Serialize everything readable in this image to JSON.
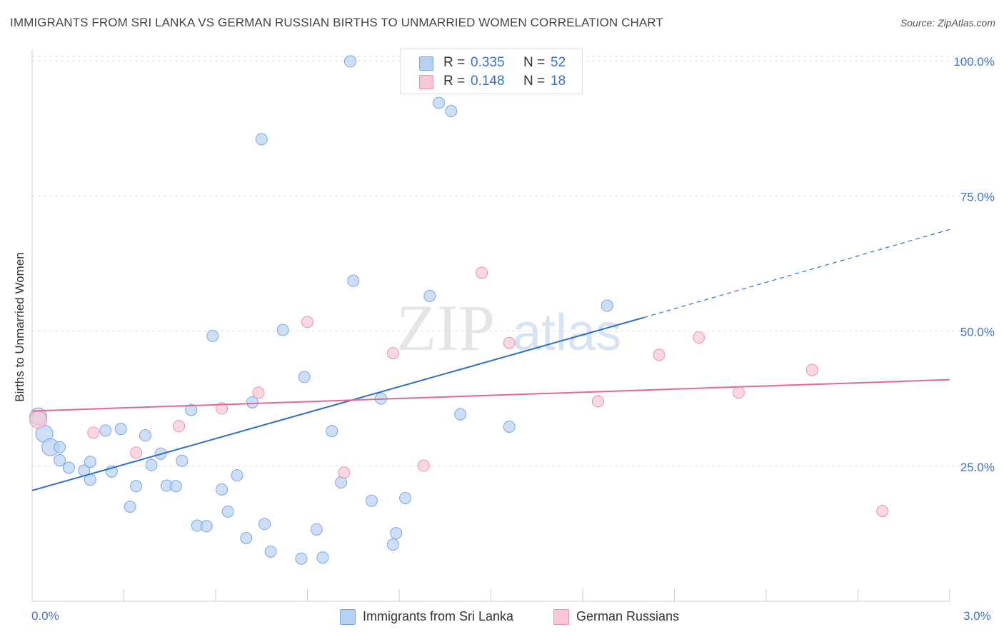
{
  "title": "IMMIGRANTS FROM SRI LANKA VS GERMAN RUSSIAN BIRTHS TO UNMARRIED WOMEN CORRELATION CHART",
  "source": "Source: ZipAtlas.com",
  "watermark": {
    "zip": "ZIP",
    "atlas": "atlas"
  },
  "legend": {
    "r_label": "R =",
    "n_label": "N =",
    "series": [
      {
        "r": "0.335",
        "n": "52"
      },
      {
        "r": "0.148",
        "n": "18"
      }
    ]
  },
  "colors": {
    "blue_fill": "#b7d1f3",
    "blue_stroke": "#7aa6e0",
    "blue_line": "#2c6fcb",
    "pink_fill": "#f8c6d4",
    "pink_stroke": "#e893ad",
    "pink_line": "#e06a95",
    "axis_text": "#3b73c8",
    "grid": "#dddddd"
  },
  "chart_data": {
    "type": "scatter",
    "title": "IMMIGRANTS FROM SRI LANKA VS GERMAN RUSSIAN BIRTHS TO UNMARRIED WOMEN CORRELATION CHART",
    "xlabel": "",
    "ylabel": "Births to Unmarried Women",
    "xlim": [
      0,
      3.0
    ],
    "ylim": [
      0,
      102
    ],
    "x_tick_labels": [
      "0.0%",
      "3.0%"
    ],
    "y_ticks": [
      25,
      50,
      75,
      100
    ],
    "y_tick_labels": [
      "25.0%",
      "50.0%",
      "75.0%",
      "100.0%"
    ],
    "grid": true,
    "legend_position": "top-center",
    "series": [
      {
        "name": "Immigrants from Sri Lanka",
        "color": "#b7d1f3",
        "r": 0.335,
        "n": 52,
        "points": [
          [
            0.02,
            34.2
          ],
          [
            0.04,
            31.0
          ],
          [
            0.06,
            28.5
          ],
          [
            0.09,
            26.1
          ],
          [
            0.12,
            24.7
          ],
          [
            0.17,
            24.2
          ],
          [
            0.19,
            22.5
          ],
          [
            0.19,
            25.8
          ],
          [
            0.24,
            31.6
          ],
          [
            0.26,
            24.0
          ],
          [
            0.29,
            31.9
          ],
          [
            0.32,
            17.5
          ],
          [
            0.34,
            21.3
          ],
          [
            0.37,
            30.7
          ],
          [
            0.39,
            25.2
          ],
          [
            0.42,
            27.3
          ],
          [
            0.44,
            21.4
          ],
          [
            0.47,
            21.3
          ],
          [
            0.49,
            26.0
          ],
          [
            0.52,
            35.4
          ],
          [
            0.54,
            14.0
          ],
          [
            0.57,
            13.9
          ],
          [
            0.59,
            49.1
          ],
          [
            0.62,
            20.7
          ],
          [
            0.64,
            16.6
          ],
          [
            0.67,
            23.3
          ],
          [
            0.7,
            11.7
          ],
          [
            0.72,
            36.8
          ],
          [
            0.75,
            85.5
          ],
          [
            0.76,
            14.3
          ],
          [
            0.78,
            9.2
          ],
          [
            0.82,
            50.2
          ],
          [
            0.88,
            7.9
          ],
          [
            0.89,
            41.5
          ],
          [
            0.93,
            13.3
          ],
          [
            0.95,
            8.1
          ],
          [
            0.98,
            31.5
          ],
          [
            1.01,
            22.0
          ],
          [
            1.04,
            99.9
          ],
          [
            1.05,
            59.3
          ],
          [
            1.11,
            18.6
          ],
          [
            1.14,
            37.5
          ],
          [
            1.18,
            10.5
          ],
          [
            1.19,
            12.6
          ],
          [
            1.22,
            19.1
          ],
          [
            1.3,
            56.5
          ],
          [
            1.33,
            92.2
          ],
          [
            1.4,
            34.6
          ],
          [
            1.37,
            90.7
          ],
          [
            1.56,
            32.3
          ],
          [
            1.88,
            54.7
          ],
          [
            0.09,
            28.5
          ]
        ]
      },
      {
        "name": "German Russians",
        "color": "#f8c6d4",
        "r": 0.148,
        "n": 18,
        "points": [
          [
            0.02,
            33.6
          ],
          [
            0.2,
            31.2
          ],
          [
            0.34,
            27.5
          ],
          [
            0.48,
            32.4
          ],
          [
            0.62,
            35.7
          ],
          [
            0.74,
            38.6
          ],
          [
            0.9,
            51.7
          ],
          [
            1.02,
            23.8
          ],
          [
            1.18,
            45.9
          ],
          [
            1.28,
            25.1
          ],
          [
            1.47,
            60.8
          ],
          [
            1.56,
            47.8
          ],
          [
            1.85,
            37.0
          ],
          [
            2.05,
            45.6
          ],
          [
            2.18,
            48.8
          ],
          [
            2.31,
            38.6
          ],
          [
            2.55,
            42.8
          ],
          [
            2.78,
            16.7
          ]
        ]
      }
    ],
    "trendlines": [
      {
        "series": "Immigrants from Sri Lanka",
        "x0": 0.0,
        "y0": 20.5,
        "x1": 2.0,
        "y1": 52.5,
        "dashed_to_x": 3.0,
        "dashed_to_y": 68.8
      },
      {
        "series": "German Russians",
        "x0": 0.0,
        "y0": 35.2,
        "x1": 3.0,
        "y1": 41.0
      }
    ]
  }
}
